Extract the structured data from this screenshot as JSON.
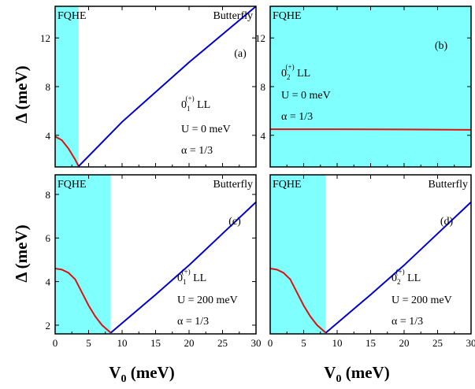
{
  "figure": {
    "ylabel_symbol": "Δ",
    "ylabel_unit": "(meV)",
    "xlabel_symbol": "V",
    "xlabel_sub": "0",
    "xlabel_unit": "(meV)"
  },
  "colors": {
    "fqhe_region": "#80ffff",
    "butterfly_line": "#0000cc",
    "fqhe_line": "#dd1111",
    "axes": "#000000"
  },
  "chart_data": [
    {
      "type": "line",
      "panel": "(a)",
      "region_labels": {
        "left": "FQHE",
        "right": "Butterfly"
      },
      "fqhe_boundary": 3.5,
      "xlim": [
        0,
        30
      ],
      "ylim": [
        1.4,
        14.6
      ],
      "xticks": [
        0,
        5,
        10,
        15,
        20,
        25,
        30
      ],
      "yticks": [
        4,
        8,
        12
      ],
      "show_xtick_labels": false,
      "annotation": {
        "ll_base": "0",
        "ll_sub": "1",
        "ll_sup": "(+)",
        "ll_suffix": " LL",
        "u": "U = 0 meV",
        "alpha": "α = 1/3"
      },
      "series": [
        {
          "role": "fqhe",
          "x": [
            0,
            1,
            2,
            3,
            3.5
          ],
          "y": [
            3.9,
            3.6,
            2.9,
            2.0,
            1.45
          ]
        },
        {
          "role": "butterfly",
          "x": [
            3.5,
            10,
            20,
            30
          ],
          "y": [
            1.45,
            5.1,
            10.0,
            14.6
          ]
        }
      ]
    },
    {
      "type": "line",
      "panel": "(b)",
      "region_labels": {
        "left": "FQHE",
        "right": ""
      },
      "fqhe_boundary": 30,
      "xlim": [
        0,
        30
      ],
      "ylim": [
        1.4,
        14.6
      ],
      "xticks": [
        0,
        5,
        10,
        15,
        20,
        25,
        30
      ],
      "yticks": [
        4,
        8,
        12
      ],
      "show_xtick_labels": false,
      "annotation": {
        "ll_base": "0",
        "ll_sub": "2",
        "ll_sup": "(+)",
        "ll_suffix": " LL",
        "u": "U = 0 meV",
        "alpha": "α = 1/3"
      },
      "series": [
        {
          "role": "fqhe",
          "x": [
            0,
            10,
            20,
            30
          ],
          "y": [
            4.5,
            4.5,
            4.48,
            4.45
          ]
        }
      ]
    },
    {
      "type": "line",
      "panel": "(c)",
      "region_labels": {
        "left": "FQHE",
        "right": "Butterfly"
      },
      "fqhe_boundary": 8.3,
      "xlim": [
        0,
        30
      ],
      "ylim": [
        1.6,
        8.9
      ],
      "xticks": [
        0,
        5,
        10,
        15,
        20,
        25,
        30
      ],
      "yticks": [
        2,
        4,
        6,
        8
      ],
      "show_xtick_labels": true,
      "annotation": {
        "ll_base": "0",
        "ll_sub": "1",
        "ll_sup": "(+)",
        "ll_suffix": " LL",
        "u": "U = 200 meV",
        "alpha": "α = 1/3"
      },
      "series": [
        {
          "role": "fqhe",
          "x": [
            0,
            1,
            2,
            3,
            4,
            5,
            6,
            7,
            8.3
          ],
          "y": [
            4.6,
            4.55,
            4.4,
            4.1,
            3.5,
            2.9,
            2.4,
            2.0,
            1.65
          ]
        },
        {
          "role": "butterfly",
          "x": [
            8.3,
            15,
            20,
            25,
            30
          ],
          "y": [
            1.65,
            3.4,
            4.75,
            6.2,
            7.65
          ]
        }
      ]
    },
    {
      "type": "line",
      "panel": "(d)",
      "region_labels": {
        "left": "FQHE",
        "right": "Butterfly"
      },
      "fqhe_boundary": 8.3,
      "xlim": [
        0,
        30
      ],
      "ylim": [
        1.6,
        8.9
      ],
      "xticks": [
        0,
        5,
        10,
        15,
        20,
        25,
        30
      ],
      "yticks": [],
      "show_xtick_labels": true,
      "annotation": {
        "ll_base": "0",
        "ll_sub": "2",
        "ll_sup": "(+)",
        "ll_suffix": " LL",
        "u": "U = 200 meV",
        "alpha": "α = 1/3"
      },
      "series": [
        {
          "role": "fqhe",
          "x": [
            0,
            1,
            2,
            3,
            4,
            5,
            6,
            7,
            8.3
          ],
          "y": [
            4.6,
            4.55,
            4.4,
            4.1,
            3.5,
            2.9,
            2.4,
            2.0,
            1.65
          ]
        },
        {
          "role": "butterfly",
          "x": [
            8.3,
            15,
            20,
            25,
            30
          ],
          "y": [
            1.65,
            3.4,
            4.75,
            6.2,
            7.65
          ]
        }
      ]
    }
  ]
}
